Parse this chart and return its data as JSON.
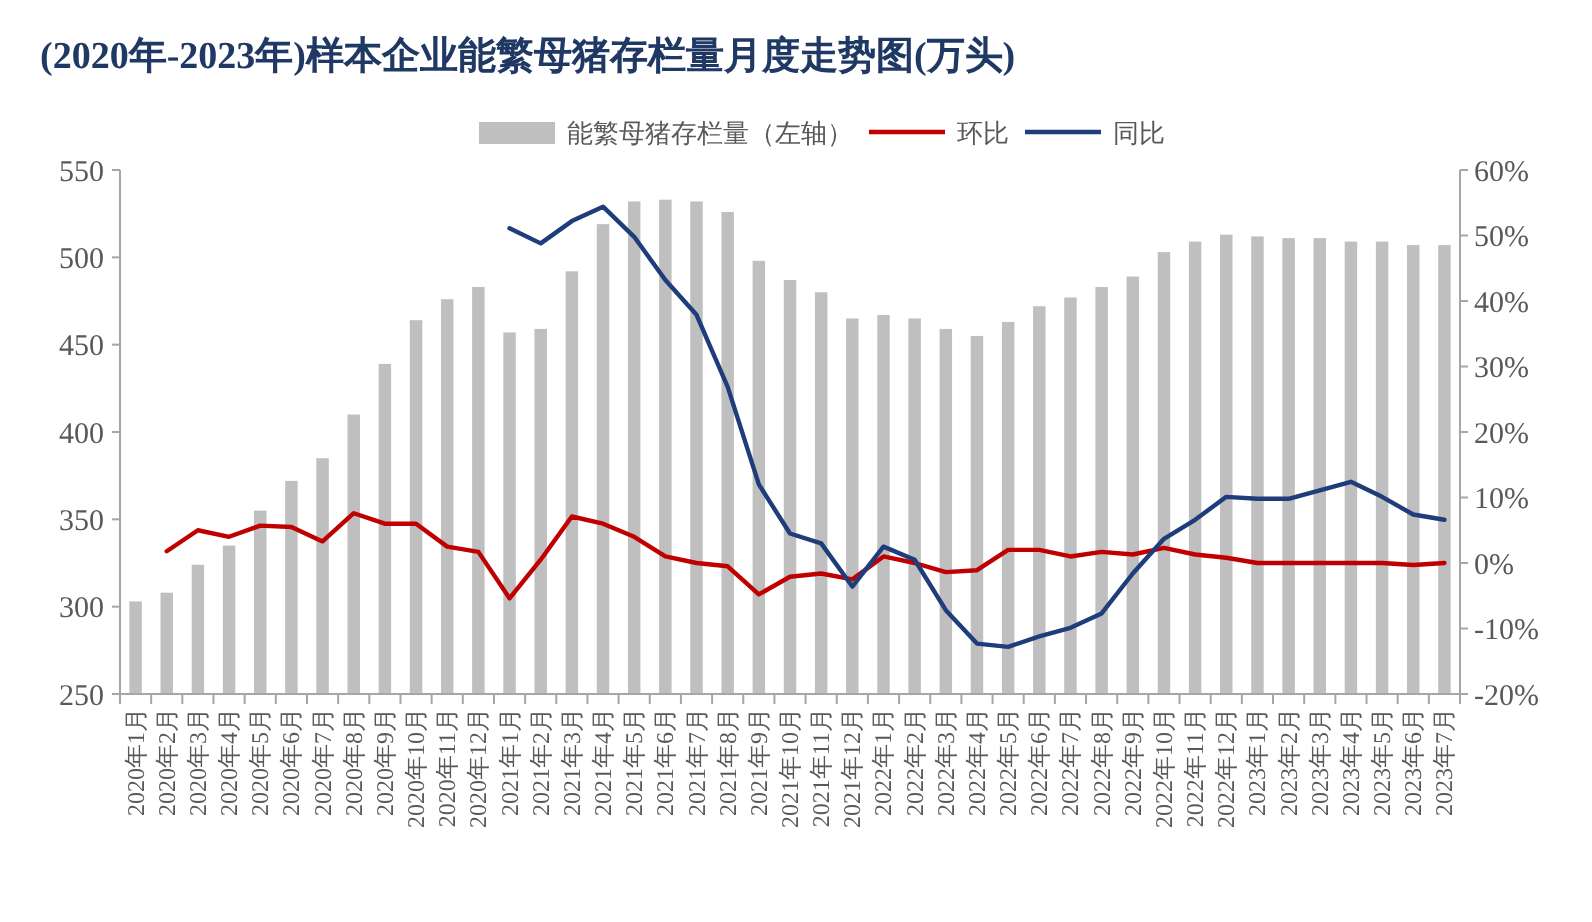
{
  "chart_data": {
    "type": "bar",
    "title": "(2020年-2023年)样本企业能繁母猪存栏量月度走势图(万头)",
    "categories": [
      "2020年1月",
      "2020年2月",
      "2020年3月",
      "2020年4月",
      "2020年5月",
      "2020年6月",
      "2020年7月",
      "2020年8月",
      "2020年9月",
      "2020年10月",
      "2020年11月",
      "2020年12月",
      "2021年1月",
      "2021年2月",
      "2021年3月",
      "2021年4月",
      "2021年5月",
      "2021年6月",
      "2021年7月",
      "2021年8月",
      "2021年9月",
      "2021年10月",
      "2021年11月",
      "2021年12月",
      "2022年1月",
      "2022年2月",
      "2022年3月",
      "2022年4月",
      "2022年5月",
      "2022年6月",
      "2022年7月",
      "2022年8月",
      "2022年9月",
      "2022年10月",
      "2022年11月",
      "2022年12月",
      "2023年1月",
      "2023年2月",
      "2023年3月",
      "2023年4月",
      "2023年5月",
      "2023年6月",
      "2023年7月"
    ],
    "series": [
      {
        "name": "能繁母猪存栏量（左轴）",
        "color": "#bfbfbf",
        "values": [
          303,
          308,
          324,
          335,
          355,
          372,
          385,
          410,
          439,
          464,
          476,
          483,
          457,
          459,
          492,
          519,
          532,
          533,
          532,
          526,
          498,
          487,
          480,
          465,
          467,
          465,
          459,
          455,
          463,
          472,
          477,
          483,
          489,
          503,
          509,
          513,
          512,
          511,
          511,
          509,
          509,
          507,
          507
        ]
      },
      {
        "name": "环比",
        "type": "line",
        "axis": "y2",
        "color": "#c00000",
        "values": [
          null,
          1.8,
          5.0,
          4.0,
          5.7,
          5.5,
          3.3,
          7.6,
          6.0,
          6.0,
          2.5,
          1.7,
          -5.4,
          0.5,
          7.1,
          6.0,
          4.0,
          1.0,
          0,
          -0.5,
          -4.8,
          -2.1,
          -1.6,
          -2.5,
          1.0,
          0,
          -1.4,
          -1.1,
          2.0,
          2.0,
          1.0,
          1.7,
          1.3,
          2.3,
          1.3,
          0.8,
          0,
          0,
          0,
          0,
          0,
          -0.3,
          0
        ]
      },
      {
        "name": "同比",
        "type": "line",
        "axis": "y2",
        "color": "#1f3d7a",
        "values": [
          null,
          null,
          null,
          null,
          null,
          null,
          null,
          null,
          null,
          null,
          null,
          null,
          51.1,
          48.8,
          52.2,
          54.4,
          49.8,
          43.2,
          37.9,
          26.9,
          12.0,
          4.5,
          3.0,
          -3.6,
          2.5,
          0.5,
          -7.2,
          -12.3,
          -12.8,
          -11.2,
          -9.9,
          -7.7,
          -1.6,
          3.7,
          6.6,
          10.1,
          9.8,
          9.8,
          11.1,
          12.4,
          10.1,
          7.4,
          6.6
        ]
      }
    ],
    "ylim": [
      250,
      550
    ],
    "yticks": [
      250,
      300,
      350,
      400,
      450,
      500,
      550
    ],
    "y2lim": [
      -20,
      60
    ],
    "y2ticks": [
      {
        "value": -20,
        "label": "-20%"
      },
      {
        "value": -10,
        "label": "-10%"
      },
      {
        "value": 0,
        "label": "0%"
      },
      {
        "value": 10,
        "label": "10%"
      },
      {
        "value": 20,
        "label": "20%"
      },
      {
        "value": 30,
        "label": "30%"
      },
      {
        "value": 40,
        "label": "40%"
      },
      {
        "value": 50,
        "label": "50%"
      },
      {
        "value": 60,
        "label": "60%"
      }
    ],
    "legend": "top"
  }
}
